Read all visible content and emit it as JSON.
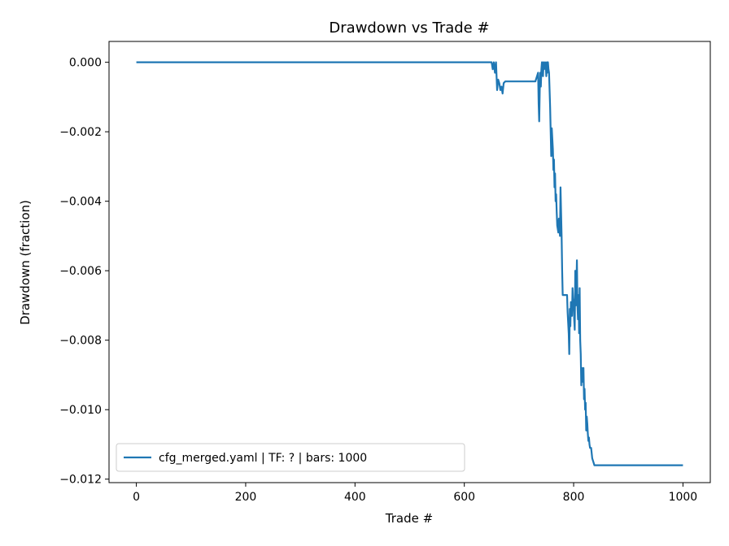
{
  "chart_data": {
    "type": "line",
    "title": "Drawdown vs Trade #",
    "xlabel": "Trade #",
    "ylabel": "Drawdown (fraction)",
    "xlim": [
      -50,
      1050
    ],
    "ylim": [
      -0.0121,
      0.0006
    ],
    "xticks": [
      0,
      200,
      400,
      600,
      800,
      1000
    ],
    "xtick_labels": [
      "0",
      "200",
      "400",
      "600",
      "800",
      "1000"
    ],
    "yticks": [
      0.0,
      -0.002,
      -0.004,
      -0.006,
      -0.008,
      -0.01,
      -0.012
    ],
    "ytick_labels": [
      "0.000",
      "−0.002",
      "−0.004",
      "−0.006",
      "−0.008",
      "−0.010",
      "−0.012"
    ],
    "grid": false,
    "legend_position": "lower-left",
    "series": [
      {
        "name": "cfg_merged.yaml | TF: ? | bars: 1000",
        "color": "#1f77b4",
        "x": [
          0,
          650,
          652,
          654,
          656,
          658,
          660,
          662,
          664,
          666,
          668,
          670,
          672,
          675,
          690,
          700,
          710,
          720,
          730,
          735,
          736,
          737,
          738,
          739,
          740,
          741,
          742,
          744,
          745,
          746,
          748,
          749,
          750,
          751,
          752,
          753,
          754,
          755,
          756,
          757,
          758,
          759,
          760,
          761,
          762,
          763,
          764,
          765,
          766,
          767,
          768,
          769,
          770,
          772,
          773,
          774,
          775,
          776,
          778,
          779,
          780,
          781,
          782,
          783,
          784,
          785,
          786,
          787,
          788,
          789,
          790,
          791,
          792,
          793,
          794,
          795,
          796,
          797,
          798,
          799,
          800,
          801,
          802,
          803,
          804,
          805,
          806,
          807,
          808,
          809,
          810,
          811,
          812,
          813,
          814,
          815,
          816,
          817,
          818,
          819,
          820,
          821,
          822,
          823,
          824,
          825,
          826,
          827,
          828,
          829,
          830,
          832,
          834,
          836,
          838,
          840,
          860,
          900,
          950,
          1000
        ],
        "values": [
          0.0,
          0.0,
          -0.0002,
          0.0,
          -0.0003,
          0.0,
          -0.0008,
          -0.0005,
          -0.0006,
          -0.0008,
          -0.0007,
          -0.0009,
          -0.0006,
          -0.00055,
          -0.00055,
          -0.00055,
          -0.00055,
          -0.00055,
          -0.00055,
          -0.0003,
          -0.0012,
          -0.0017,
          -0.0008,
          -0.0003,
          -0.0007,
          -0.0002,
          0.0,
          -0.0004,
          0.0,
          -0.0002,
          0.0,
          -0.0001,
          -0.0004,
          0.0,
          -0.0003,
          0.0,
          -0.0002,
          -0.0003,
          -0.0008,
          -0.0013,
          -0.002,
          -0.0027,
          -0.0019,
          -0.0022,
          -0.0025,
          -0.0031,
          -0.0028,
          -0.0036,
          -0.0032,
          -0.004,
          -0.0038,
          -0.0043,
          -0.0047,
          -0.0049,
          -0.0045,
          -0.0047,
          -0.005,
          -0.0036,
          -0.005,
          -0.006,
          -0.0067,
          -0.0067,
          -0.0067,
          -0.0067,
          -0.0067,
          -0.0067,
          -0.0067,
          -0.0067,
          -0.0067,
          -0.0072,
          -0.0075,
          -0.0078,
          -0.0084,
          -0.0071,
          -0.0076,
          -0.0069,
          -0.007,
          -0.0073,
          -0.0065,
          -0.0068,
          -0.0069,
          -0.0074,
          -0.0077,
          -0.006,
          -0.007,
          -0.0065,
          -0.0057,
          -0.007,
          -0.0074,
          -0.0067,
          -0.0078,
          -0.0065,
          -0.008,
          -0.0084,
          -0.0093,
          -0.0088,
          -0.009,
          -0.0092,
          -0.0088,
          -0.0097,
          -0.0094,
          -0.01,
          -0.0098,
          -0.0106,
          -0.0102,
          -0.0104,
          -0.0107,
          -0.0109,
          -0.0108,
          -0.011,
          -0.0111,
          -0.0111,
          -0.0114,
          -0.0115,
          -0.0116,
          -0.0116,
          -0.0116,
          -0.0116,
          -0.0116,
          -0.0116
        ]
      }
    ]
  }
}
